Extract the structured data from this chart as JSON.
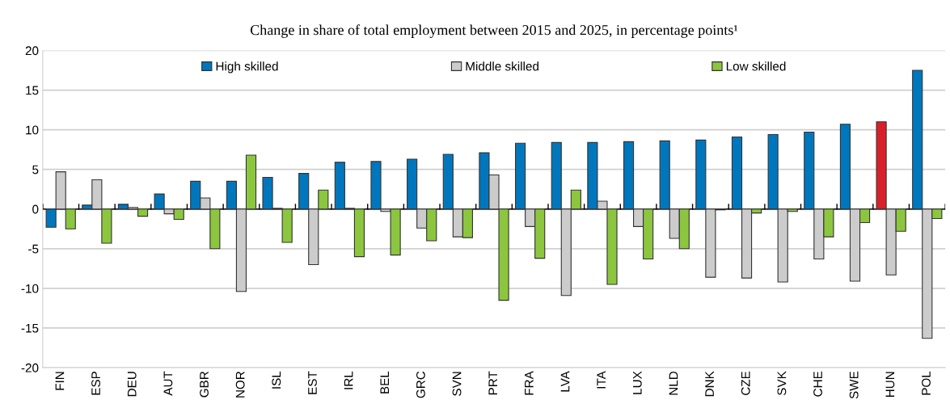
{
  "chart_data": {
    "type": "bar",
    "title": "Change in share of total employment between 2015 and 2025, in percentage points¹",
    "categories": [
      "FIN",
      "ESP",
      "DEU",
      "AUT",
      "GBR",
      "NOR",
      "ISL",
      "EST",
      "IRL",
      "BEL",
      "GRC",
      "SVN",
      "PRT",
      "FRA",
      "LVA",
      "ITA",
      "LUX",
      "NLD",
      "DNK",
      "CZE",
      "SVK",
      "CHE",
      "SWE",
      "HUN",
      "POL"
    ],
    "series": [
      {
        "name": "High skilled",
        "color": "#0077bd",
        "colors": [
          "#0077bd",
          "#0077bd",
          "#0077bd",
          "#0077bd",
          "#0077bd",
          "#0077bd",
          "#0077bd",
          "#0077bd",
          "#0077bd",
          "#0077bd",
          "#0077bd",
          "#0077bd",
          "#0077bd",
          "#0077bd",
          "#0077bd",
          "#0077bd",
          "#0077bd",
          "#0077bd",
          "#0077bd",
          "#0077bd",
          "#0077bd",
          "#0077bd",
          "#0077bd",
          "#d9202a",
          "#0077bd"
        ],
        "values": [
          -2.3,
          0.5,
          0.6,
          1.9,
          3.5,
          3.5,
          4.0,
          4.5,
          5.9,
          6.0,
          6.3,
          6.9,
          7.1,
          8.3,
          8.4,
          8.4,
          8.5,
          8.6,
          8.7,
          9.1,
          9.4,
          9.7,
          10.7,
          11.0,
          17.5
        ]
      },
      {
        "name": "Middle skilled",
        "color": "#cccccc",
        "values": [
          4.7,
          3.7,
          0.2,
          -0.6,
          1.4,
          -10.4,
          0.1,
          -7.0,
          0.1,
          -0.3,
          -2.4,
          -3.5,
          4.3,
          -2.2,
          -10.9,
          1.0,
          -2.2,
          -3.7,
          -8.6,
          -8.7,
          -9.2,
          -6.3,
          -9.1,
          -8.3,
          -16.3
        ]
      },
      {
        "name": "Low skilled",
        "color": "#8cc63f",
        "values": [
          -2.5,
          -4.3,
          -0.9,
          -1.3,
          -5.0,
          6.8,
          -4.2,
          2.4,
          -6.0,
          -5.8,
          -4.0,
          -3.6,
          -11.5,
          -6.2,
          2.4,
          -9.5,
          -6.3,
          -5.0,
          -0.1,
          -0.5,
          -0.3,
          -3.5,
          -1.7,
          -2.8,
          -1.2
        ]
      }
    ],
    "ylim": [
      -20,
      20
    ],
    "yticks": [
      -20,
      -15,
      -10,
      -5,
      0,
      5,
      10,
      15,
      20
    ],
    "grid": "y",
    "legend": "top"
  }
}
